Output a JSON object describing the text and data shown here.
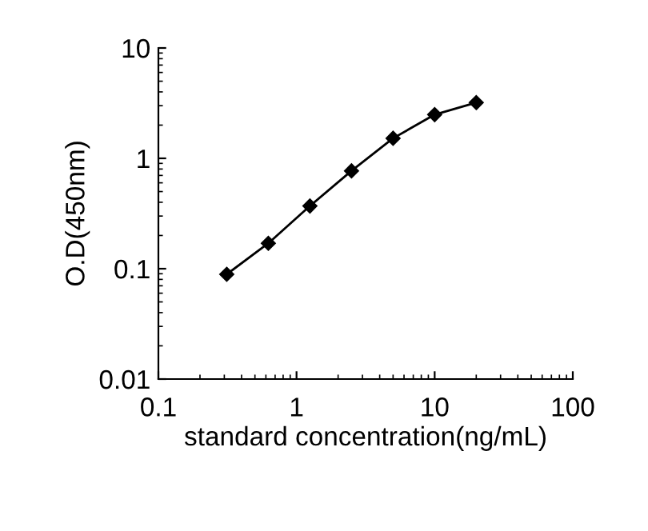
{
  "chart_data": {
    "type": "line",
    "xlabel": "standard concentration(ng/mL)",
    "ylabel": "O.D(450nm)",
    "x": [
      0.3125,
      0.625,
      1.25,
      2.5,
      5,
      10,
      20
    ],
    "series": [
      {
        "color": "#000000",
        "values": [
          0.089,
          0.17,
          0.37,
          0.77,
          1.52,
          2.49,
          3.2
        ]
      }
    ],
    "log": "xy",
    "marker": "diamond",
    "line_style": "solid",
    "grid": false,
    "legend": false,
    "xlim": [
      0.1,
      100
    ],
    "xticks": [
      0.1,
      1,
      10,
      100
    ],
    "ylim": [
      0.01,
      10
    ],
    "yticks": [
      0.01,
      0.1,
      1,
      10
    ]
  }
}
